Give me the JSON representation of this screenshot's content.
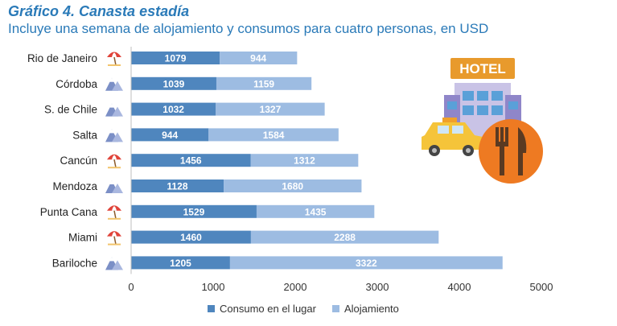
{
  "title": "Gráfico 4. Canasta estadía",
  "subtitle": "Incluye una semana de alojamiento y consumos para cuatro personas, en USD",
  "colors": {
    "consumo": "#4f86be",
    "alojamiento": "#9dbce2",
    "title": "#2a7ab8"
  },
  "illustration": {
    "sign_text": "HOTEL"
  },
  "chart_data": {
    "type": "bar",
    "orientation": "horizontal",
    "stacked": true,
    "categories": [
      "Rio de Janeiro",
      "Córdoba",
      "S. de Chile",
      "Salta",
      "Cancún",
      "Mendoza",
      "Punta Cana",
      "Miami",
      "Bariloche"
    ],
    "category_icons": [
      "beach-umbrella-icon",
      "mountain-icon",
      "mountain-icon",
      "mountain-icon",
      "beach-umbrella-icon",
      "mountain-icon",
      "beach-umbrella-icon",
      "beach-umbrella-icon",
      "mountain-icon"
    ],
    "series": [
      {
        "name": "Consumo en el lugar",
        "values": [
          1079,
          1039,
          1032,
          944,
          1456,
          1128,
          1529,
          1460,
          1205
        ]
      },
      {
        "name": "Alojamiento",
        "values": [
          944,
          1159,
          1327,
          1584,
          1312,
          1680,
          1435,
          2288,
          3322
        ]
      }
    ],
    "xlim": [
      0,
      5000
    ],
    "xticks": [
      0,
      1000,
      2000,
      3000,
      4000,
      5000
    ],
    "grid": false,
    "legend_position": "bottom"
  }
}
